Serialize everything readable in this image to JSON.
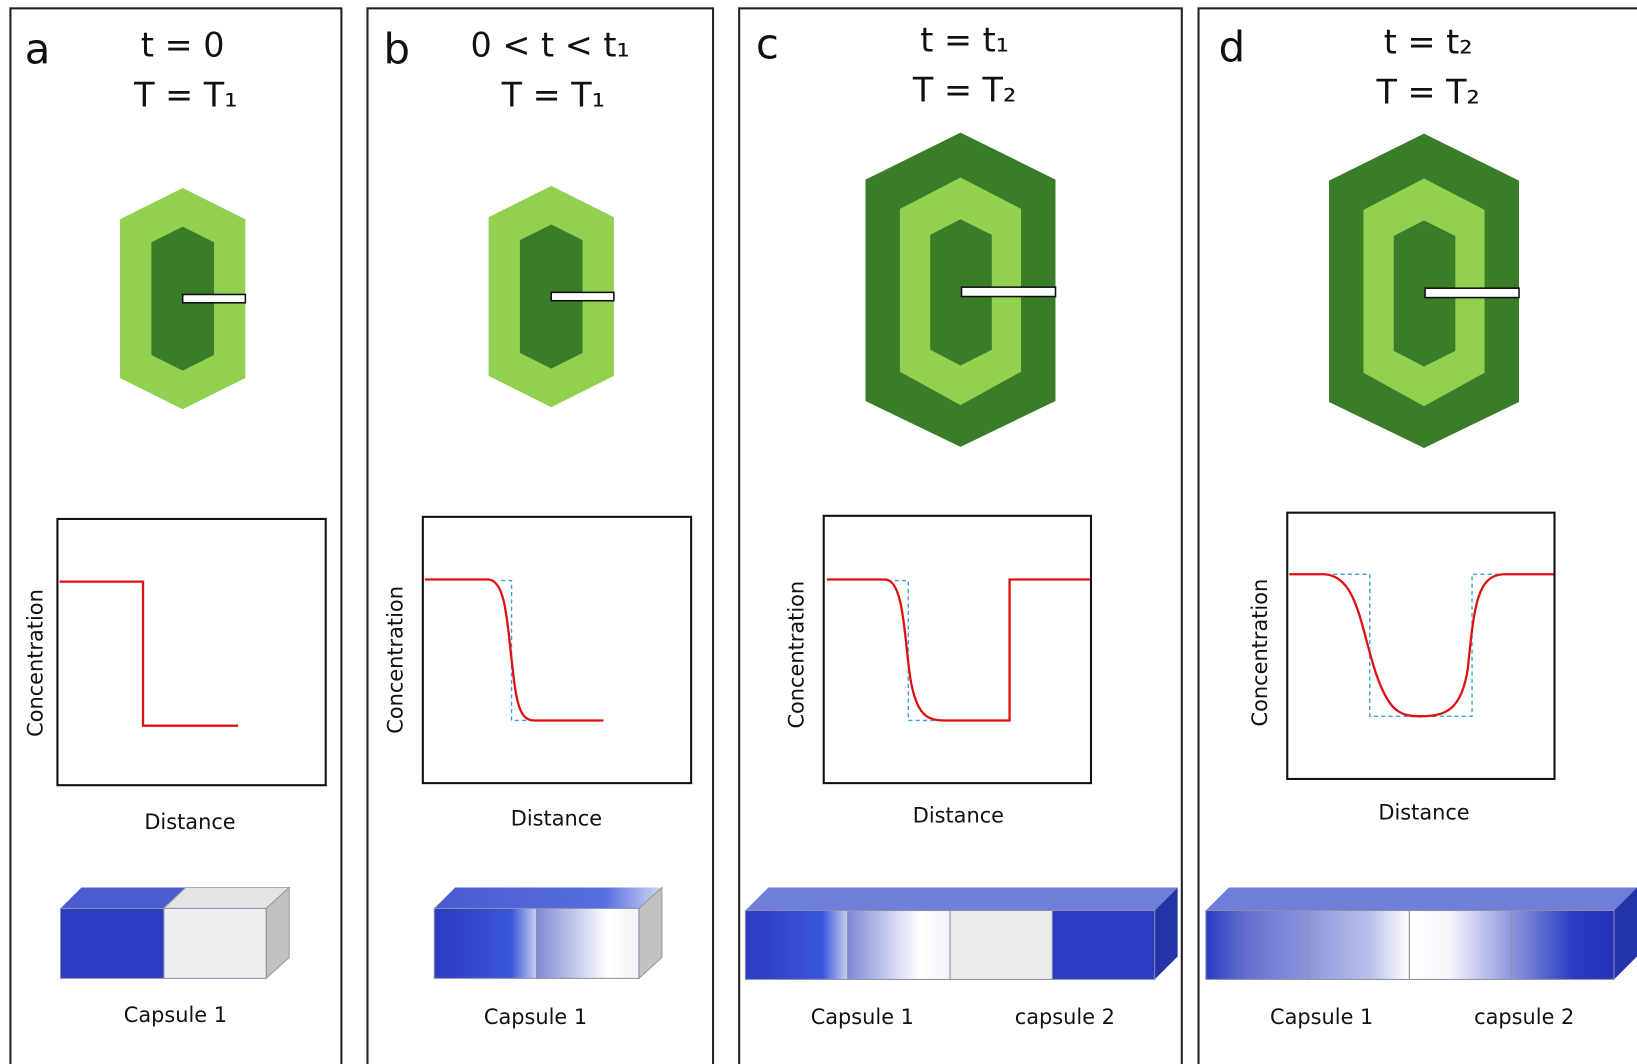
{
  "panels": [
    {
      "label": "a",
      "time": "t = 0",
      "temperature": "T = T₁",
      "y_axis": "Concentration",
      "x_axis": "Distance",
      "capsules": [
        "Capsule 1"
      ]
    },
    {
      "label": "b",
      "time": "0 < t < t₁",
      "temperature": "T = T₁",
      "y_axis": "Concentration",
      "x_axis": "Distance",
      "capsules": [
        "Capsule 1"
      ]
    },
    {
      "label": "c",
      "time": "t = t₁",
      "temperature": "T = T₂",
      "y_axis": "Concentration",
      "x_axis": "Distance",
      "capsules": [
        "Capsule 1",
        "capsule 2"
      ]
    },
    {
      "label": "d",
      "time": "t = t₂",
      "temperature": "T = T₂",
      "y_axis": "Concentration",
      "x_axis": "Distance",
      "capsules": [
        "Capsule 1",
        "capsule 2"
      ]
    }
  ]
}
